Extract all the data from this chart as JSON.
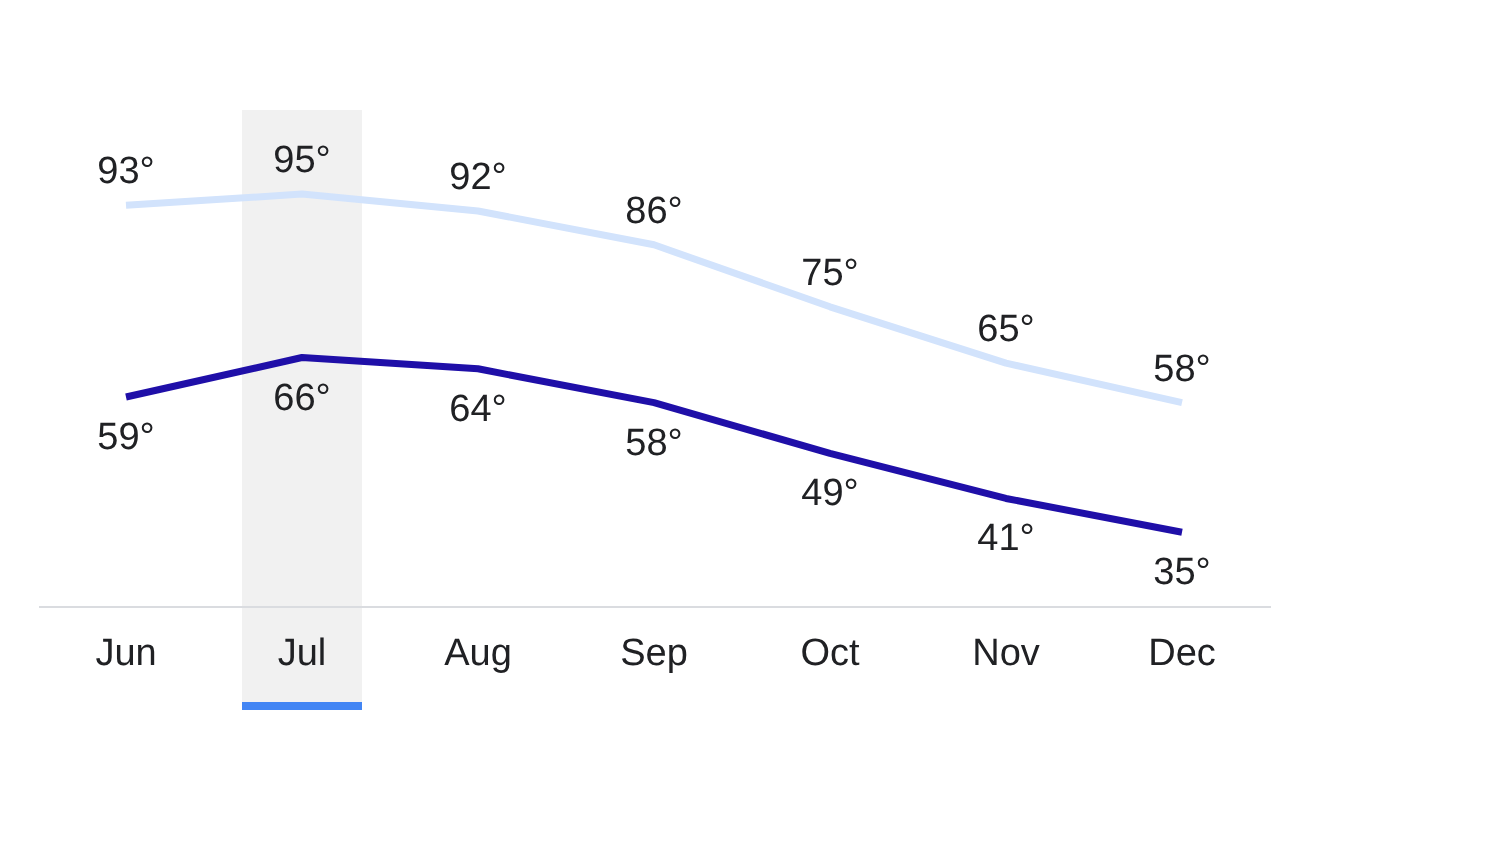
{
  "chart_data": {
    "type": "line",
    "categories": [
      "Jun",
      "Jul",
      "Aug",
      "Sep",
      "Oct",
      "Nov",
      "Dec"
    ],
    "series": [
      {
        "color": "#d2e3fc",
        "values": [
          93,
          95,
          92,
          86,
          75,
          65,
          58
        ],
        "value_labels": [
          "93°",
          "95°",
          "92°",
          "86°",
          "75°",
          "65°",
          "58°"
        ]
      },
      {
        "color": "#1f0fa8",
        "values": [
          59,
          66,
          64,
          58,
          49,
          41,
          35
        ],
        "value_labels": [
          "59°",
          "66°",
          "64°",
          "58°",
          "49°",
          "41°",
          "35°"
        ]
      }
    ],
    "bands": [
      {
        "axis": "x",
        "from": "Jul",
        "to": "Jul",
        "color": "#f1f1f1"
      }
    ],
    "tick_labels": "x",
    "marker": "none",
    "line_style": "solid"
  }
}
